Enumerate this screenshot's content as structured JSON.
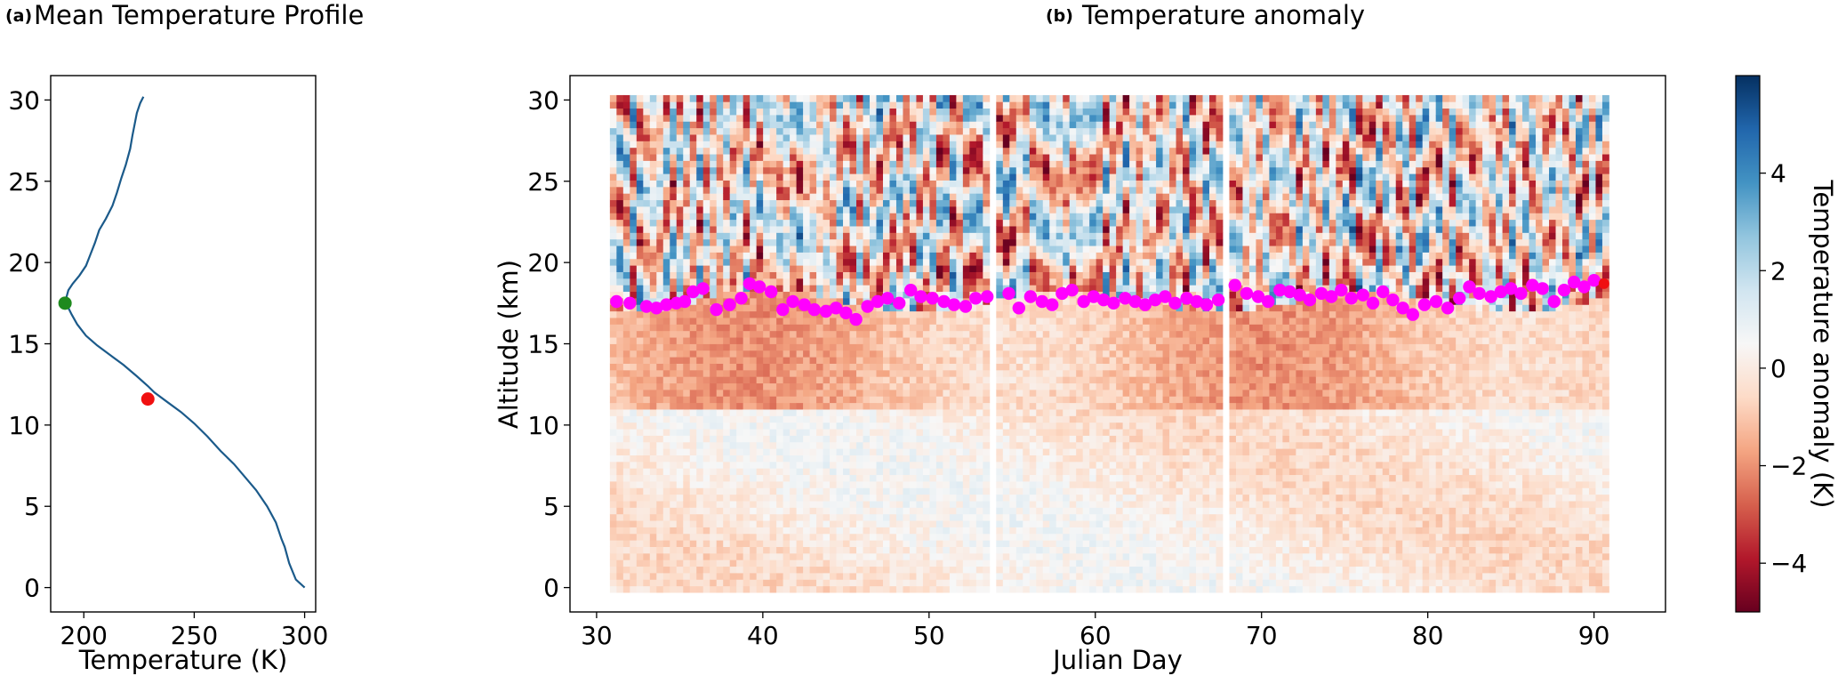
{
  "chart_data": [
    {
      "panel": "(a)",
      "type": "line",
      "title": "Mean Temperature Profile",
      "xlabel": "Temperature (K)",
      "ylabel": "",
      "xlim": [
        185,
        305
      ],
      "ylim": [
        -1.5,
        31.5
      ],
      "xticks": [
        200,
        250,
        300
      ],
      "yticks": [
        0,
        5,
        10,
        15,
        20,
        25,
        30
      ],
      "line_color": "#1b5a8a",
      "series": [
        {
          "x": [
            300,
            296,
            293,
            291,
            289.5,
            287,
            283,
            278,
            273,
            268,
            262,
            256,
            250,
            244,
            238,
            232,
            229,
            224,
            218,
            212,
            206,
            201,
            197,
            194.5,
            193,
            192,
            193,
            195,
            198,
            201,
            203,
            205,
            207,
            210,
            213,
            215,
            217,
            219,
            221,
            222,
            223,
            224,
            225.5,
            227
          ],
          "y": [
            0,
            0.5,
            1.5,
            2.5,
            3,
            4,
            5,
            6,
            6.8,
            7.6,
            8.4,
            9.3,
            10.1,
            10.8,
            11.4,
            12,
            12.4,
            13,
            13.7,
            14.3,
            14.9,
            15.5,
            16.2,
            16.8,
            17.2,
            17.8,
            18.3,
            18.7,
            19.2,
            19.8,
            20.5,
            21.2,
            22,
            22.7,
            23.5,
            24.3,
            25.2,
            26,
            27,
            27.8,
            28.5,
            29.2,
            29.8,
            30.2
          ]
        }
      ],
      "markers": [
        {
          "label": "",
          "color": "#1e8a1e",
          "x": 191.5,
          "y": 17.5
        },
        {
          "label": "",
          "color": "#f01010",
          "x": 229,
          "y": 11.6
        }
      ]
    },
    {
      "panel": "(b)",
      "type": "heatmap",
      "title": "Temperature anomaly",
      "xlabel": "Julian Day",
      "ylabel": "Altitude (km)",
      "xlim": [
        28.4,
        94.3
      ],
      "ylim": [
        -1.5,
        31.5
      ],
      "xticks": [
        30,
        40,
        50,
        60,
        70,
        80,
        90
      ],
      "yticks": [
        0,
        5,
        10,
        15,
        20,
        25,
        30
      ],
      "data_x_range": [
        30.8,
        90.9
      ],
      "data_y_range": [
        -0.3,
        30.3
      ],
      "gaps_day": [
        54,
        68
      ],
      "colorbar": {
        "label": "Temperature anomaly (K)",
        "range": [
          -5,
          6
        ],
        "ticks": [
          -4,
          -2,
          0,
          2,
          4
        ],
        "tick_labels": [
          "−4",
          "−2",
          "0",
          "2",
          "4"
        ],
        "colormap": "RdBu",
        "colors": [
          "#67001f",
          "#b2182b",
          "#d6604d",
          "#f4a582",
          "#fddbc7",
          "#f7f7f7",
          "#d1e5f0",
          "#92c5de",
          "#4393c3",
          "#2166ac",
          "#053061"
        ]
      },
      "tropopause": {
        "color": "#ff00ff",
        "x": [
          31.2,
          32.0,
          33.0,
          33.6,
          34.2,
          34.8,
          35.3,
          35.8,
          36.4,
          37.2,
          38.0,
          38.7,
          39.2,
          39.8,
          40.5,
          41.2,
          41.8,
          42.5,
          43.1,
          43.8,
          44.4,
          45.0,
          45.6,
          46.3,
          46.9,
          47.5,
          48.2,
          48.9,
          49.5,
          50.2,
          50.9,
          51.5,
          52.2,
          52.8,
          53.5,
          54.8,
          55.4,
          56.1,
          56.8,
          57.4,
          58.0,
          58.6,
          59.3,
          59.9,
          60.5,
          61.1,
          61.8,
          62.4,
          63.0,
          63.6,
          64.2,
          64.8,
          65.5,
          66.1,
          66.7,
          67.4,
          68.4,
          69.1,
          69.8,
          70.4,
          71.1,
          71.7,
          72.3,
          72.9,
          73.6,
          74.2,
          74.8,
          75.4,
          76.1,
          76.7,
          77.3,
          77.9,
          78.5,
          79.1,
          79.8,
          80.5,
          81.2,
          81.9,
          82.5,
          83.1,
          83.8,
          84.4,
          85.0,
          85.6,
          86.3,
          86.9,
          87.6,
          88.2,
          88.8,
          89.4,
          90.0
        ],
        "y": [
          17.6,
          17.5,
          17.3,
          17.2,
          17.4,
          17.5,
          17.6,
          18.2,
          18.4,
          17.1,
          17.4,
          17.8,
          18.7,
          18.5,
          18.2,
          17.1,
          17.6,
          17.4,
          17.1,
          17.0,
          17.2,
          16.9,
          16.5,
          17.3,
          17.6,
          17.8,
          17.5,
          18.3,
          17.9,
          17.8,
          17.6,
          17.4,
          17.3,
          17.8,
          17.9,
          18.1,
          17.2,
          17.9,
          17.6,
          17.4,
          18.1,
          18.3,
          17.6,
          17.9,
          17.7,
          17.5,
          17.8,
          17.6,
          17.4,
          17.7,
          17.9,
          17.5,
          17.8,
          17.6,
          17.4,
          17.7,
          18.6,
          18.1,
          17.9,
          17.6,
          18.3,
          18.2,
          18.0,
          17.7,
          18.1,
          17.9,
          18.3,
          17.8,
          18.0,
          17.5,
          18.2,
          17.7,
          17.2,
          16.8,
          17.4,
          17.6,
          17.2,
          17.8,
          18.5,
          18.1,
          17.9,
          18.2,
          18.4,
          18.1,
          18.6,
          18.4,
          17.6,
          18.3,
          18.8,
          18.5,
          18.9
        ]
      },
      "tropopause_red": {
        "color": "#f01010",
        "x": 90.6,
        "y": 18.7
      }
    }
  ]
}
